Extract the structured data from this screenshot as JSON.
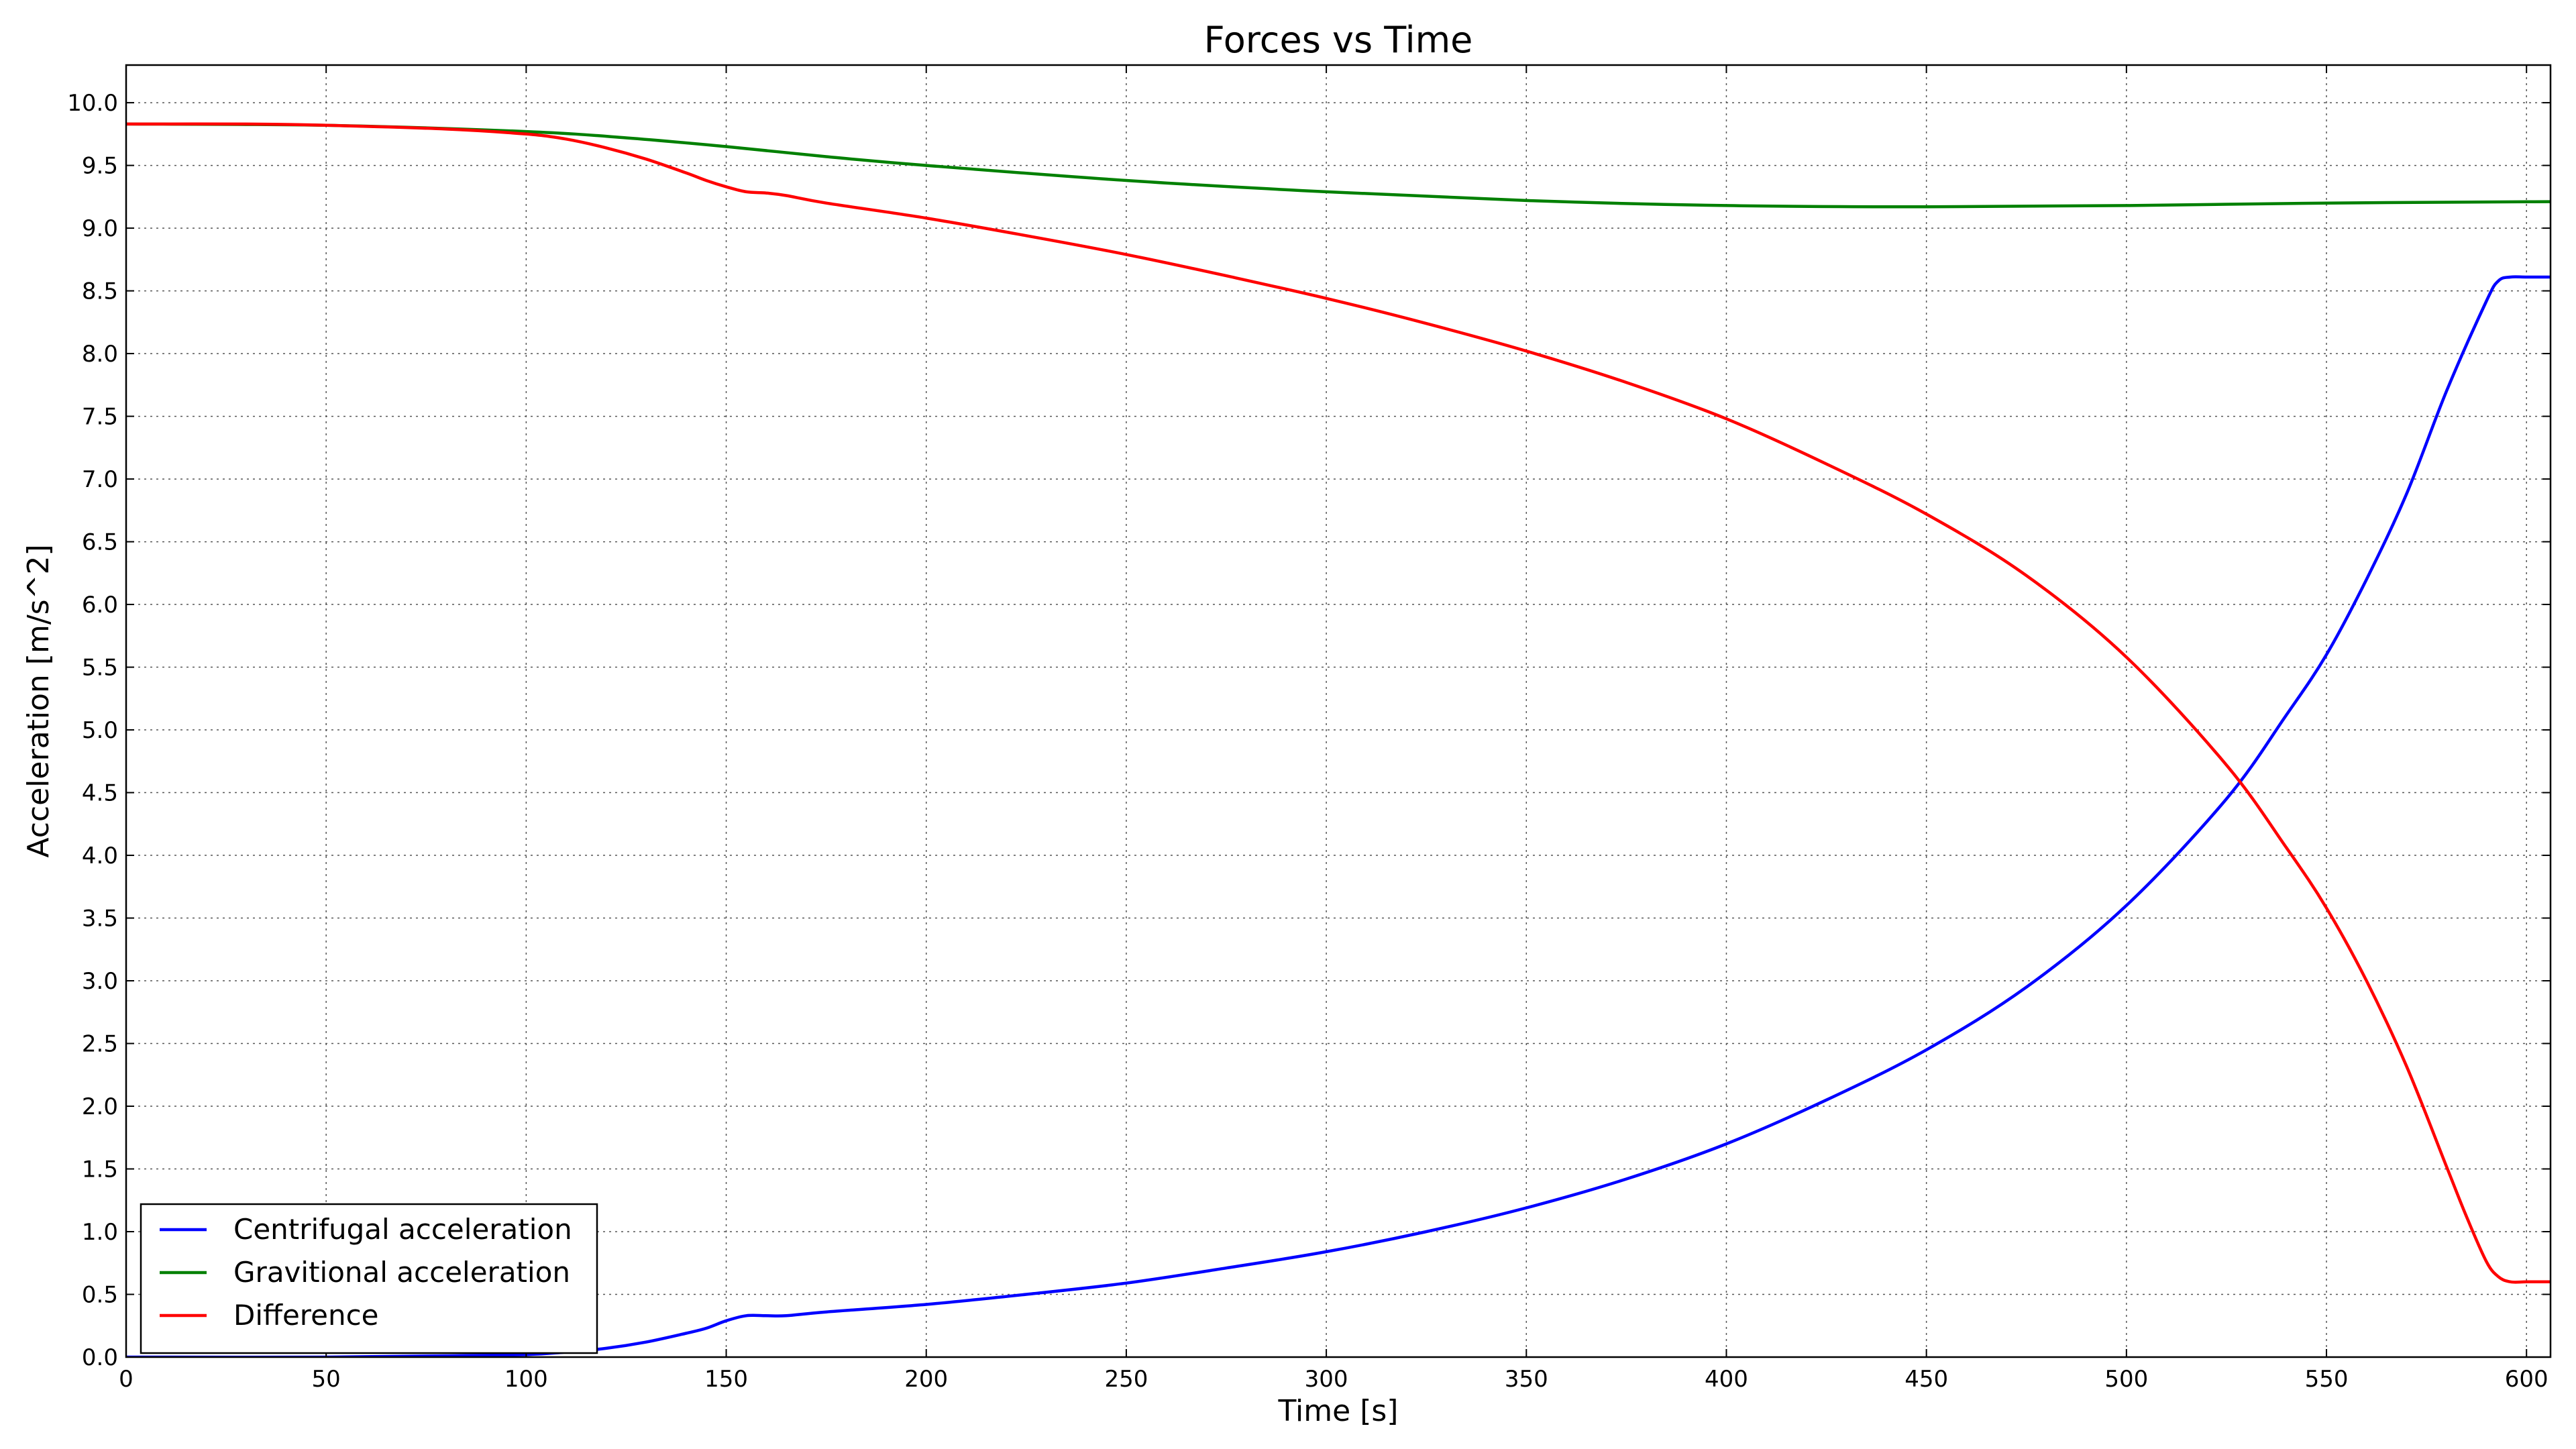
{
  "chart_data": {
    "type": "line",
    "title": "Forces vs Time",
    "xlabel": "Time [s]",
    "ylabel": "Acceleration [m/s^2]",
    "xlim": [
      0,
      606
    ],
    "ylim": [
      0,
      10.3
    ],
    "x_ticks": [
      0,
      50,
      100,
      150,
      200,
      250,
      300,
      350,
      400,
      450,
      500,
      550,
      600
    ],
    "x_tick_labels": [
      "0",
      "50",
      "100",
      "150",
      "200",
      "250",
      "300",
      "350",
      "400",
      "450",
      "500",
      "550",
      "600"
    ],
    "y_ticks": [
      0,
      0.5,
      1.0,
      1.5,
      2.0,
      2.5,
      3.0,
      3.5,
      4.0,
      4.5,
      5.0,
      5.5,
      6.0,
      6.5,
      7.0,
      7.5,
      8.0,
      8.5,
      9.0,
      9.5,
      10.0
    ],
    "y_tick_labels": [
      "0.0",
      "0.5",
      "1.0",
      "1.5",
      "2.0",
      "2.5",
      "3.0",
      "3.5",
      "4.0",
      "4.5",
      "5.0",
      "5.5",
      "6.0",
      "6.5",
      "7.0",
      "7.5",
      "8.0",
      "8.5",
      "9.0",
      "9.5",
      "10.0"
    ],
    "grid": true,
    "legend_position": "bottom-left",
    "series": [
      {
        "name": "Centrifugal acceleration",
        "color": "#0000ff",
        "x": [
          0,
          50,
          80,
          100,
          110,
          120,
          130,
          140,
          145,
          150,
          155,
          160,
          165,
          175,
          200,
          225,
          250,
          275,
          300,
          325,
          350,
          375,
          400,
          425,
          450,
          475,
          500,
          525,
          540,
          550,
          560,
          570,
          580,
          590,
          593,
          596,
          600,
          606
        ],
        "y": [
          0,
          0,
          0.01,
          0.02,
          0.04,
          0.07,
          0.12,
          0.19,
          0.23,
          0.29,
          0.33,
          0.33,
          0.33,
          0.36,
          0.42,
          0.5,
          0.59,
          0.71,
          0.84,
          1.0,
          1.19,
          1.42,
          1.7,
          2.05,
          2.45,
          2.95,
          3.6,
          4.45,
          5.12,
          5.6,
          6.2,
          6.88,
          7.7,
          8.42,
          8.58,
          8.61,
          8.61,
          8.61
        ]
      },
      {
        "name": "Gravitional acceleration",
        "color": "#008000",
        "x": [
          0,
          50,
          100,
          125,
          150,
          175,
          200,
          250,
          300,
          350,
          400,
          450,
          500,
          550,
          600,
          606
        ],
        "y": [
          9.83,
          9.82,
          9.77,
          9.72,
          9.65,
          9.57,
          9.5,
          9.38,
          9.29,
          9.22,
          9.18,
          9.17,
          9.18,
          9.2,
          9.21,
          9.21
        ]
      },
      {
        "name": "Difference",
        "color": "#ff0000",
        "x": [
          0,
          30,
          50,
          80,
          100,
          110,
          120,
          130,
          140,
          145,
          150,
          155,
          160,
          165,
          175,
          200,
          225,
          250,
          275,
          300,
          325,
          350,
          375,
          400,
          425,
          450,
          475,
          500,
          525,
          540,
          550,
          560,
          570,
          580,
          585,
          590,
          593,
          596,
          600,
          606
        ],
        "y": [
          9.83,
          9.83,
          9.82,
          9.79,
          9.75,
          9.71,
          9.64,
          9.55,
          9.44,
          9.38,
          9.33,
          9.29,
          9.28,
          9.26,
          9.2,
          9.08,
          8.94,
          8.79,
          8.62,
          8.44,
          8.24,
          8.02,
          7.77,
          7.48,
          7.12,
          6.72,
          6.23,
          5.58,
          4.72,
          4.06,
          3.58,
          3.0,
          2.32,
          1.52,
          1.12,
          0.76,
          0.64,
          0.6,
          0.6,
          0.6
        ]
      }
    ]
  }
}
